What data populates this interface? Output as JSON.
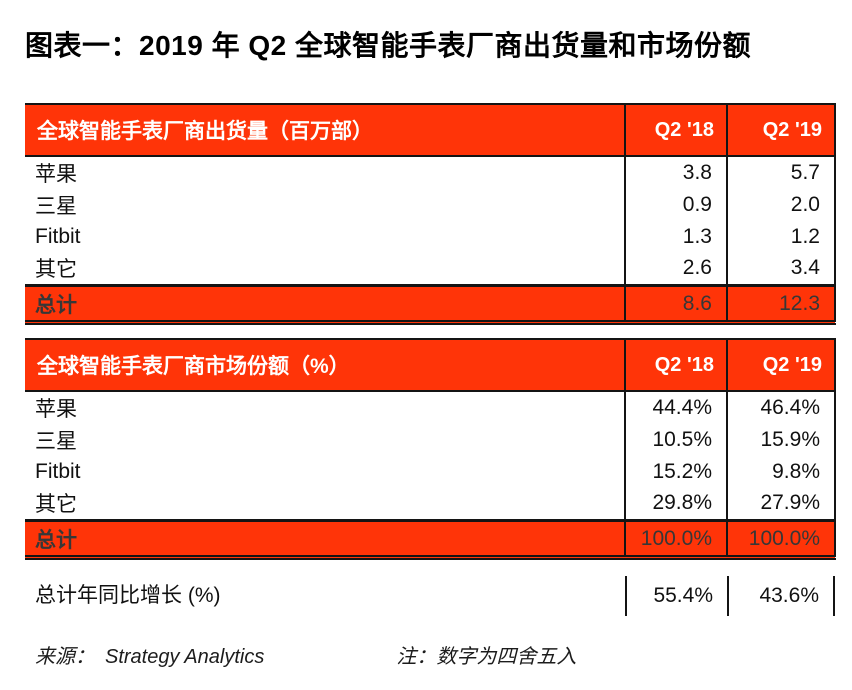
{
  "title": "图表一：2019 年 Q2 全球智能手表厂商出货量和市场份额",
  "colors": {
    "accent_red": "#FF3408",
    "border_black": "#141414",
    "header_text": "#FFFFFF",
    "total_text": "#373737"
  },
  "chart_data": [
    {
      "type": "table",
      "title": "全球智能手表厂商出货量（百万部）",
      "columns": [
        "Q2 '18",
        "Q2 '19"
      ],
      "rows": [
        {
          "label": "苹果",
          "values": [
            "3.8",
            "5.7"
          ]
        },
        {
          "label": "三星",
          "values": [
            "0.9",
            "2.0"
          ]
        },
        {
          "label": "Fitbit",
          "values": [
            "1.3",
            "1.2"
          ]
        },
        {
          "label": "其它",
          "values": [
            "2.6",
            "3.4"
          ]
        }
      ],
      "total": {
        "label": "总计",
        "values": [
          "8.6",
          "12.3"
        ]
      }
    },
    {
      "type": "table",
      "title": "全球智能手表厂商市场份额（%）",
      "columns": [
        "Q2 '18",
        "Q2 '19"
      ],
      "rows": [
        {
          "label": "苹果",
          "values": [
            "44.4%",
            "46.4%"
          ]
        },
        {
          "label": "三星",
          "values": [
            "10.5%",
            "15.9%"
          ]
        },
        {
          "label": "Fitbit",
          "values": [
            "15.2%",
            "9.8%"
          ]
        },
        {
          "label": "其它",
          "values": [
            "29.8%",
            "27.9%"
          ]
        }
      ],
      "total": {
        "label": "总计",
        "values": [
          "100.0%",
          "100.0%"
        ]
      }
    }
  ],
  "growth": {
    "label": "总计年同比增长 (%)",
    "values": [
      "55.4%",
      "43.6%"
    ]
  },
  "footer": {
    "source_label": "来源：",
    "source_value": "Strategy Analytics",
    "note": "注：数字为四舍五入"
  }
}
